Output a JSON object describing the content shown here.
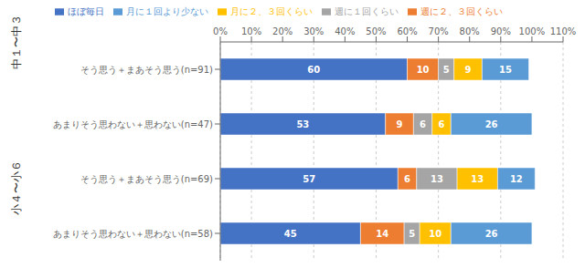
{
  "chart_data": {
    "type": "bar",
    "orientation": "horizontal",
    "stacked": true,
    "data_labels": true,
    "grid": true,
    "legend": "top",
    "categories": [
      "そう思う＋まあそう思う(n=91)",
      "あまりそう思わない＋思わない(n=47)",
      "そう思う＋まあそう思う(n=69)",
      "あまりそう思わない＋思わない(n=58)"
    ],
    "annotations": [
      "小４〜小６",
      "中１〜中３"
    ],
    "series": [
      {
        "name": "ほぼ毎日",
        "color": "#4472c4",
        "values": [
          60,
          53,
          57,
          45
        ]
      },
      {
        "name": "週に２、３回くらい",
        "color": "#ed7d31",
        "values": [
          10,
          9,
          6,
          14
        ]
      },
      {
        "name": "週に１回くらい",
        "color": "#a5a5a5",
        "values": [
          5,
          6,
          13,
          5
        ]
      },
      {
        "name": "月に２、３回くらい",
        "color": "#ffc000",
        "values": [
          9,
          6,
          13,
          10
        ]
      },
      {
        "name": "月に１回より少ない",
        "color": "#5b9bd5",
        "values": [
          15,
          26,
          12,
          26
        ]
      }
    ],
    "xlim": [
      0,
      110
    ],
    "xticks": [
      {
        "value": 0,
        "label": "0%"
      },
      {
        "value": 10,
        "label": "10%"
      },
      {
        "value": 20,
        "label": "20%"
      },
      {
        "value": 30,
        "label": "30%"
      },
      {
        "value": 40,
        "label": "40%"
      },
      {
        "value": 50,
        "label": "50%"
      },
      {
        "value": 60,
        "label": "60%"
      },
      {
        "value": 70,
        "label": "70%"
      },
      {
        "value": 80,
        "label": "80%"
      },
      {
        "value": 90,
        "label": "90%"
      },
      {
        "value": 100,
        "label": "100%"
      },
      {
        "value": 110,
        "label": "110%"
      }
    ]
  }
}
